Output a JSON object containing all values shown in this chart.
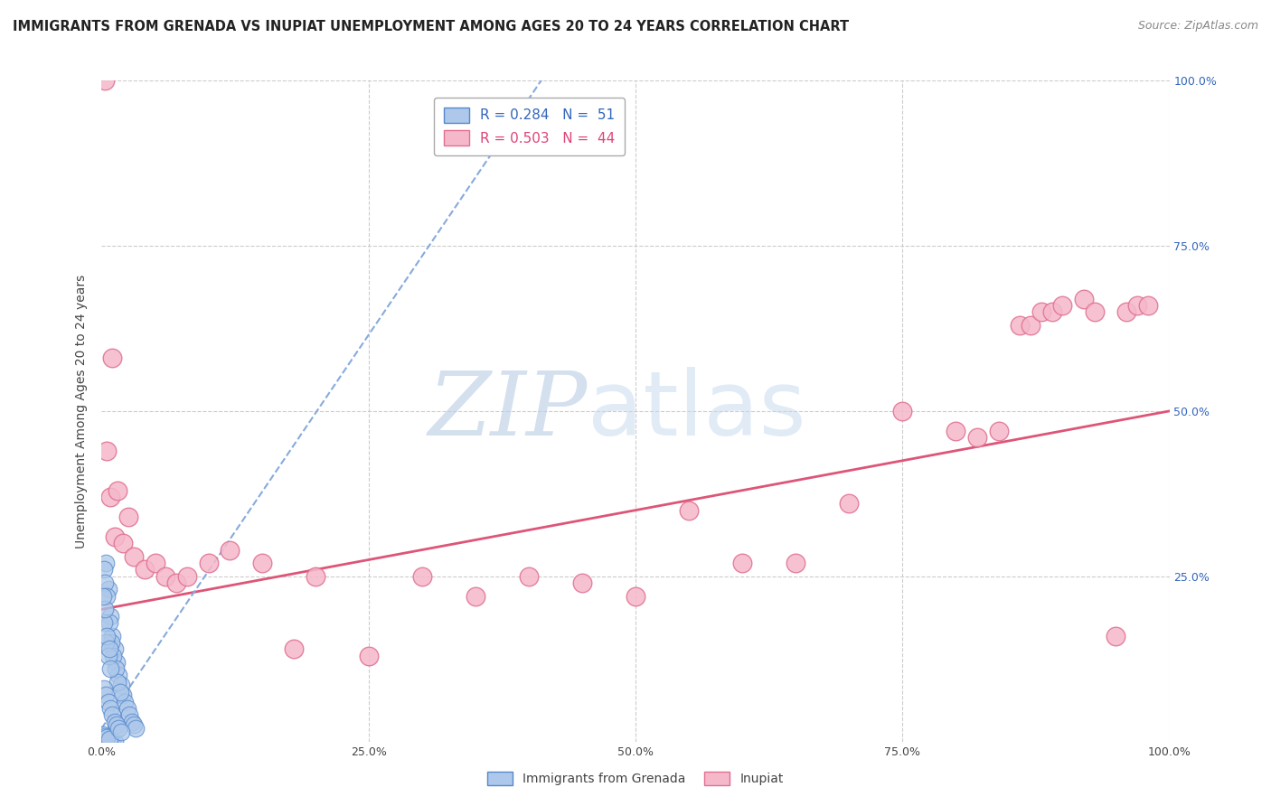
{
  "title": "IMMIGRANTS FROM GRENADA VS INUPIAT UNEMPLOYMENT AMONG AGES 20 TO 24 YEARS CORRELATION CHART",
  "source": "Source: ZipAtlas.com",
  "ylabel": "Unemployment Among Ages 20 to 24 years",
  "xlim": [
    0,
    1.0
  ],
  "ylim": [
    0,
    1.0
  ],
  "legend_r1": "R = 0.284",
  "legend_n1": "N =  51",
  "legend_r2": "R = 0.503",
  "legend_n2": "N =  44",
  "grenada_color": "#adc8ea",
  "grenada_edge": "#5588cc",
  "inupiat_color": "#f5b8cb",
  "inupiat_edge": "#e07090",
  "trendline_blue_color": "#88aadd",
  "trendline_pink_color": "#dd5577",
  "background_color": "#ffffff",
  "grenada_dots": [
    [
      0.004,
      0.27
    ],
    [
      0.006,
      0.23
    ],
    [
      0.008,
      0.19
    ],
    [
      0.01,
      0.16
    ],
    [
      0.012,
      0.14
    ],
    [
      0.014,
      0.12
    ],
    [
      0.016,
      0.1
    ],
    [
      0.018,
      0.085
    ],
    [
      0.02,
      0.07
    ],
    [
      0.022,
      0.06
    ],
    [
      0.024,
      0.05
    ],
    [
      0.026,
      0.04
    ],
    [
      0.028,
      0.03
    ],
    [
      0.03,
      0.025
    ],
    [
      0.032,
      0.02
    ],
    [
      0.002,
      0.26
    ],
    [
      0.003,
      0.24
    ],
    [
      0.005,
      0.22
    ],
    [
      0.007,
      0.18
    ],
    [
      0.009,
      0.15
    ],
    [
      0.011,
      0.13
    ],
    [
      0.013,
      0.11
    ],
    [
      0.015,
      0.09
    ],
    [
      0.017,
      0.075
    ],
    [
      0.004,
      0.005
    ],
    [
      0.006,
      0.004
    ],
    [
      0.002,
      0.003
    ],
    [
      0.008,
      0.002
    ],
    [
      0.01,
      0.001
    ],
    [
      0.012,
      0.0
    ],
    [
      0.001,
      0.01
    ],
    [
      0.003,
      0.008
    ],
    [
      0.005,
      0.006
    ],
    [
      0.007,
      0.004
    ],
    [
      0.002,
      0.18
    ],
    [
      0.004,
      0.15
    ],
    [
      0.006,
      0.13
    ],
    [
      0.008,
      0.11
    ],
    [
      0.003,
      0.2
    ],
    [
      0.001,
      0.22
    ],
    [
      0.005,
      0.16
    ],
    [
      0.007,
      0.14
    ],
    [
      0.002,
      0.08
    ],
    [
      0.004,
      0.07
    ],
    [
      0.006,
      0.06
    ],
    [
      0.008,
      0.05
    ],
    [
      0.01,
      0.04
    ],
    [
      0.012,
      0.03
    ],
    [
      0.014,
      0.025
    ],
    [
      0.016,
      0.02
    ],
    [
      0.018,
      0.015
    ]
  ],
  "inupiat_dots": [
    [
      0.005,
      0.44
    ],
    [
      0.008,
      0.37
    ],
    [
      0.012,
      0.31
    ],
    [
      0.015,
      0.38
    ],
    [
      0.02,
      0.3
    ],
    [
      0.025,
      0.34
    ],
    [
      0.03,
      0.28
    ],
    [
      0.04,
      0.26
    ],
    [
      0.05,
      0.27
    ],
    [
      0.06,
      0.25
    ],
    [
      0.07,
      0.24
    ],
    [
      0.08,
      0.25
    ],
    [
      0.1,
      0.27
    ],
    [
      0.12,
      0.29
    ],
    [
      0.15,
      0.27
    ],
    [
      0.18,
      0.14
    ],
    [
      0.2,
      0.25
    ],
    [
      0.25,
      0.13
    ],
    [
      0.3,
      0.25
    ],
    [
      0.35,
      0.22
    ],
    [
      0.4,
      0.25
    ],
    [
      0.45,
      0.24
    ],
    [
      0.5,
      0.22
    ],
    [
      0.55,
      0.35
    ],
    [
      0.6,
      0.27
    ],
    [
      0.65,
      0.27
    ],
    [
      0.7,
      0.36
    ],
    [
      0.75,
      0.5
    ],
    [
      0.8,
      0.47
    ],
    [
      0.82,
      0.46
    ],
    [
      0.84,
      0.47
    ],
    [
      0.86,
      0.63
    ],
    [
      0.87,
      0.63
    ],
    [
      0.88,
      0.65
    ],
    [
      0.89,
      0.65
    ],
    [
      0.9,
      0.66
    ],
    [
      0.92,
      0.67
    ],
    [
      0.93,
      0.65
    ],
    [
      0.95,
      0.16
    ],
    [
      0.96,
      0.65
    ],
    [
      0.97,
      0.66
    ],
    [
      0.98,
      0.66
    ],
    [
      0.003,
      1.0
    ],
    [
      0.01,
      0.58
    ]
  ],
  "grenada_trend_x": [
    0.0,
    0.42
  ],
  "grenada_trend_y": [
    0.02,
    1.02
  ],
  "inupiat_trend_x": [
    0.0,
    1.0
  ],
  "inupiat_trend_y": [
    0.2,
    0.5
  ]
}
